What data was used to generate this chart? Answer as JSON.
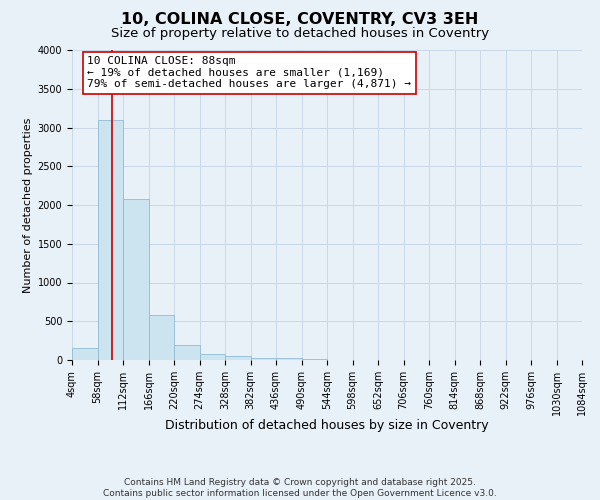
{
  "title": "10, COLINA CLOSE, COVENTRY, CV3 3EH",
  "subtitle": "Size of property relative to detached houses in Coventry",
  "xlabel": "Distribution of detached houses by size in Coventry",
  "ylabel": "Number of detached properties",
  "bin_edges": [
    4,
    58,
    112,
    166,
    220,
    274,
    328,
    382,
    436,
    490,
    544,
    598,
    652,
    706,
    760,
    814,
    868,
    922,
    976,
    1030,
    1084
  ],
  "bar_heights": [
    150,
    3100,
    2080,
    580,
    200,
    75,
    50,
    30,
    20,
    10,
    0,
    0,
    0,
    0,
    0,
    0,
    0,
    0,
    0,
    0
  ],
  "bar_color": "#cce4f0",
  "bar_edge_color": "#90bcd4",
  "grid_color": "#c8d8e8",
  "bg_color": "#e8f0f8",
  "red_line_x": 88,
  "red_line_color": "#cc0000",
  "annotation_text": "10 COLINA CLOSE: 88sqm\n← 19% of detached houses are smaller (1,169)\n79% of semi-detached houses are larger (4,871) →",
  "ylim": [
    0,
    4000
  ],
  "yticks": [
    0,
    500,
    1000,
    1500,
    2000,
    2500,
    3000,
    3500,
    4000
  ],
  "footer_line1": "Contains HM Land Registry data © Crown copyright and database right 2025.",
  "footer_line2": "Contains public sector information licensed under the Open Government Licence v3.0.",
  "title_fontsize": 11.5,
  "subtitle_fontsize": 9.5,
  "xlabel_fontsize": 9,
  "ylabel_fontsize": 8,
  "tick_fontsize": 7,
  "annotation_fontsize": 8,
  "footer_fontsize": 6.5
}
